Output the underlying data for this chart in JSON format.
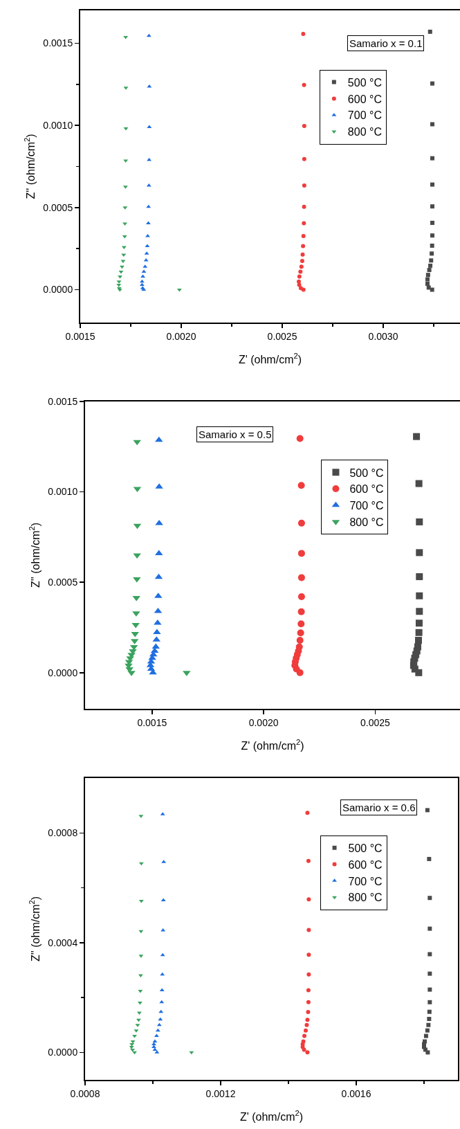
{
  "chart_data": [
    {
      "type": "scatter",
      "annotations": [
        "Samario x = 0.1"
      ],
      "xlabel": "Z' (ohm/cm$^{2}$)",
      "ylabel": "Z'' (ohm/cm$^{2}$)",
      "legend": "top right",
      "grid": false,
      "xlim": [
        0.0015,
        0.00338
      ],
      "xticks": [
        {
          "value": 0.0015,
          "label": "0.0015"
        },
        {
          "value": 0.00175,
          "label": null
        },
        {
          "value": 0.002,
          "label": "0.0020"
        },
        {
          "value": 0.00225,
          "label": null
        },
        {
          "value": 0.0025,
          "label": "0.0025"
        },
        {
          "value": 0.00275,
          "label": null
        },
        {
          "value": 0.003,
          "label": "0.0030"
        },
        {
          "value": 0.00325,
          "label": null
        }
      ],
      "ylim": [
        -0.0002,
        0.0017
      ],
      "yticks": [
        {
          "value": 0,
          "label": "0.0000"
        },
        {
          "value": 0.00025,
          "label": null
        },
        {
          "value": 0.0005,
          "label": "0.0005"
        },
        {
          "value": 0.00075,
          "label": null
        },
        {
          "value": 0.001,
          "label": "0.0010"
        },
        {
          "value": 0.00125,
          "label": null
        },
        {
          "value": 0.0015,
          "label": "0.0015"
        }
      ],
      "series": [
        {
          "name": "500 °C",
          "color": "#4a4a4a",
          "marker": "square",
          "x": [
            0.003232,
            0.003243,
            0.003243,
            0.003243,
            0.003243,
            0.003243,
            0.003243,
            0.003243,
            0.003242,
            0.00324,
            0.003237,
            0.003233,
            0.003228,
            0.003222,
            0.003219,
            0.003219,
            0.003225,
            0.003242
          ],
          "values": [
            0.00157,
            0.001255,
            0.001007,
            0.0008,
            0.00064,
            0.000507,
            0.000407,
            0.00033,
            0.000268,
            0.00022,
            0.000178,
            0.000146,
            0.00012,
            9e-05,
            6.3e-05,
            3.6e-05,
            1.3e-05,
            0
          ]
        },
        {
          "name": "600 °C",
          "color": "#f03c3c",
          "marker": "circle",
          "x": [
            0.002604,
            0.002608,
            0.002609,
            0.002609,
            0.002609,
            0.002608,
            0.002607,
            0.002605,
            0.002603,
            0.002601,
            0.002599,
            0.002595,
            0.00259,
            0.002585,
            0.002582,
            0.002584,
            0.002592,
            0.002605
          ],
          "values": [
            0.001557,
            0.001246,
            0.000996,
            0.000795,
            0.000634,
            0.000505,
            0.000405,
            0.000327,
            0.000266,
            0.000214,
            0.000175,
            0.00014,
            0.00011,
            8e-05,
            5e-05,
            3e-05,
            1e-05,
            0
          ]
        },
        {
          "name": "700 °C",
          "color": "#1f6fe0",
          "marker": "triangle",
          "x": [
            0.00184,
            0.001842,
            0.001842,
            0.001841,
            0.00184,
            0.001838,
            0.001837,
            0.001834,
            0.001832,
            0.001829,
            0.001826,
            0.001821,
            0.001815,
            0.00181,
            0.001806,
            0.001806,
            0.001809,
            0.001814
          ],
          "values": [
            0.001545,
            0.001237,
            0.00099,
            0.00079,
            0.000634,
            0.000505,
            0.000405,
            0.000327,
            0.000266,
            0.00022,
            0.000179,
            0.00014,
            0.00011,
            8e-05,
            5e-05,
            3e-05,
            1e-05,
            0
          ]
        },
        {
          "name": "800 °C",
          "color": "#3aa35e",
          "marker": "triangle-down",
          "x": [
            0.001725,
            0.001726,
            0.001726,
            0.001725,
            0.001724,
            0.001722,
            0.001721,
            0.00172,
            0.001717,
            0.001715,
            0.001712,
            0.001707,
            0.001702,
            0.001697,
            0.001692,
            0.001691,
            0.001693,
            0.001696,
            0.001991
          ],
          "values": [
            0.001538,
            0.001229,
            0.000982,
            0.000786,
            0.000627,
            0.0005,
            0.000402,
            0.000325,
            0.000259,
            0.000213,
            0.000175,
            0.00014,
            0.00011,
            8e-05,
            5e-05,
            3e-05,
            1e-05,
            0,
            0
          ]
        }
      ]
    },
    {
      "type": "scatter",
      "annotations": [
        "Samario x = 0.5"
      ],
      "xlabel": "Z' (ohm/cm$^{2}$)",
      "ylabel": "Z'' (ohm/cm$^{2}$)",
      "legend": "top right",
      "grid": false,
      "xlim": [
        0.0012,
        0.00288
      ],
      "xticks": [
        {
          "value": 0.0015,
          "label": "0.0015"
        },
        {
          "value": 0.002,
          "label": "0.0020"
        },
        {
          "value": 0.0025,
          "label": "0.0025"
        }
      ],
      "ylim": [
        -0.0002,
        0.0015
      ],
      "yticks": [
        {
          "value": 0,
          "label": "0.0000"
        },
        {
          "value": 0.0005,
          "label": "0.0005"
        },
        {
          "value": 0.001,
          "label": "0.0010"
        },
        {
          "value": 0.0015,
          "label": "0.0015"
        }
      ],
      "series": [
        {
          "name": "500 °C",
          "color": "#4a4a4a",
          "marker": "square",
          "x": [
            0.002685,
            0.002696,
            0.002698,
            0.002698,
            0.002698,
            0.002698,
            0.002698,
            0.002697,
            0.002696,
            0.002694,
            0.002691,
            0.002687,
            0.002682,
            0.002677,
            0.002673,
            0.002672,
            0.002678,
            0.002695
          ],
          "values": [
            0.001306,
            0.001046,
            0.000834,
            0.000664,
            0.000531,
            0.000425,
            0.000339,
            0.000274,
            0.000222,
            0.000179,
            0.000143,
            0.00012,
            0.0001,
            8e-05,
            6e-05,
            4e-05,
            2e-05,
            0
          ]
        },
        {
          "name": "600 °C",
          "color": "#f03c3c",
          "marker": "circle",
          "x": [
            0.002163,
            0.002169,
            0.00217,
            0.00217,
            0.00217,
            0.00217,
            0.002169,
            0.002168,
            0.002166,
            0.002163,
            0.00216,
            0.002156,
            0.002151,
            0.002146,
            0.002142,
            0.00214,
            0.002147,
            0.002163
          ],
          "values": [
            0.001295,
            0.001036,
            0.000827,
            0.00066,
            0.000526,
            0.00042,
            0.000337,
            0.00027,
            0.00022,
            0.000179,
            0.000143,
            0.00012,
            0.0001,
            8e-05,
            6e-05,
            4e-05,
            2e-05,
            0
          ]
        },
        {
          "name": "700 °C",
          "color": "#1f6fe0",
          "marker": "triangle",
          "x": [
            0.001531,
            0.001532,
            0.001532,
            0.001531,
            0.00153,
            0.001528,
            0.001527,
            0.001525,
            0.001522,
            0.00152,
            0.001517,
            0.001512,
            0.001506,
            0.001501,
            0.001496,
            0.001493,
            0.001496,
            0.001504
          ],
          "values": [
            0.001287,
            0.001028,
            0.000826,
            0.00066,
            0.000528,
            0.000423,
            0.00034,
            0.000275,
            0.000223,
            0.000182,
            0.000143,
            0.00012,
            0.0001,
            8e-05,
            6e-05,
            4e-05,
            2e-05,
            0
          ]
        },
        {
          "name": "800 °C",
          "color": "#3aa35e",
          "marker": "triangle-down",
          "x": [
            0.001433,
            0.001434,
            0.001434,
            0.001433,
            0.001432,
            0.00143,
            0.001429,
            0.001427,
            0.001424,
            0.001422,
            0.001419,
            0.001414,
            0.001408,
            0.001402,
            0.001397,
            0.001395,
            0.001399,
            0.001408,
            0.001655
          ],
          "values": [
            0.001277,
            0.001018,
            0.000814,
            0.00065,
            0.000518,
            0.000415,
            0.000329,
            0.000265,
            0.000215,
            0.000176,
            0.000143,
            0.00012,
            0.0001,
            8e-05,
            6e-05,
            4e-05,
            2e-05,
            0,
            0
          ]
        }
      ]
    },
    {
      "type": "scatter",
      "annotations": [
        "Samario x = 0.6"
      ],
      "xlabel": "Z' (ohm/cm$^{2}$)",
      "ylabel": "Z'' (ohm/cm$^{2}$)",
      "legend": "top right",
      "grid": false,
      "xlim": [
        0.0008,
        0.0019
      ],
      "xticks": [
        {
          "value": 0.0008,
          "label": "0.0008"
        },
        {
          "value": 0.001,
          "label": null
        },
        {
          "value": 0.0012,
          "label": "0.0012"
        },
        {
          "value": 0.0014,
          "label": null
        },
        {
          "value": 0.0016,
          "label": "0.0016"
        },
        {
          "value": 0.0018,
          "label": null
        }
      ],
      "ylim": [
        -0.0001,
        0.001
      ],
      "yticks": [
        {
          "value": 0,
          "label": "0.0000"
        },
        {
          "value": 0.0002,
          "label": null
        },
        {
          "value": 0.0004,
          "label": "0.0004"
        },
        {
          "value": 0.0006,
          "label": null
        },
        {
          "value": 0.0008,
          "label": "0.0008"
        }
      ],
      "series": [
        {
          "name": "500 °C",
          "color": "#4a4a4a",
          "marker": "square",
          "x": [
            0.00181,
            0.001815,
            0.001817,
            0.001817,
            0.001817,
            0.001817,
            0.001817,
            0.001817,
            0.001816,
            0.001815,
            0.001813,
            0.00181,
            0.001806,
            0.001802,
            0.0018,
            0.0018,
            0.001804,
            0.001811
          ],
          "values": [
            0.000883,
            0.000705,
            0.000563,
            0.000451,
            0.000358,
            0.000287,
            0.000229,
            0.000183,
            0.000148,
            0.000122,
            0.0001,
            8e-05,
            6e-05,
            4e-05,
            3e-05,
            2e-05,
            1e-05,
            0
          ]
        },
        {
          "name": "600 °C",
          "color": "#f03c3c",
          "marker": "circle",
          "x": [
            0.001456,
            0.001459,
            0.00146,
            0.00146,
            0.00146,
            0.00146,
            0.001459,
            0.001459,
            0.001458,
            0.001456,
            0.001454,
            0.001451,
            0.001447,
            0.001444,
            0.001442,
            0.001442,
            0.001446,
            0.001456
          ],
          "values": [
            0.000873,
            0.000698,
            0.000558,
            0.000446,
            0.000356,
            0.000284,
            0.000227,
            0.000183,
            0.000147,
            0.000119,
            0.0001,
            8e-05,
            6e-05,
            4e-05,
            3e-05,
            2e-05,
            1e-05,
            0
          ]
        },
        {
          "name": "700 °C",
          "color": "#1f6fe0",
          "marker": "triangle",
          "x": [
            0.001029,
            0.001032,
            0.001031,
            0.00103,
            0.001029,
            0.001028,
            0.001027,
            0.001026,
            0.001024,
            0.001022,
            0.001019,
            0.001015,
            0.001011,
            0.001006,
            0.001003,
            0.001003,
            0.001006,
            0.001012
          ],
          "values": [
            0.000868,
            0.000694,
            0.000555,
            0.000445,
            0.000355,
            0.000284,
            0.000227,
            0.000183,
            0.000148,
            0.00012,
            0.0001,
            8e-05,
            6e-05,
            4e-05,
            3e-05,
            2e-05,
            1e-05,
            0
          ]
        },
        {
          "name": "800 °C",
          "color": "#3aa35e",
          "marker": "triangle-down",
          "x": [
            0.000965,
            0.000966,
            0.000966,
            0.000965,
            0.000965,
            0.000964,
            0.000963,
            0.000962,
            0.00096,
            0.000958,
            0.000955,
            0.000951,
            0.000946,
            0.000941,
            0.000938,
            0.000937,
            0.00094,
            0.000946,
            0.001114
          ],
          "values": [
            0.000862,
            0.000689,
            0.000552,
            0.000442,
            0.000352,
            0.000281,
            0.000224,
            0.000181,
            0.000145,
            0.000119,
            0.0001,
            8e-05,
            6e-05,
            4e-05,
            3e-05,
            2e-05,
            1e-05,
            0,
            0
          ]
        }
      ]
    }
  ]
}
